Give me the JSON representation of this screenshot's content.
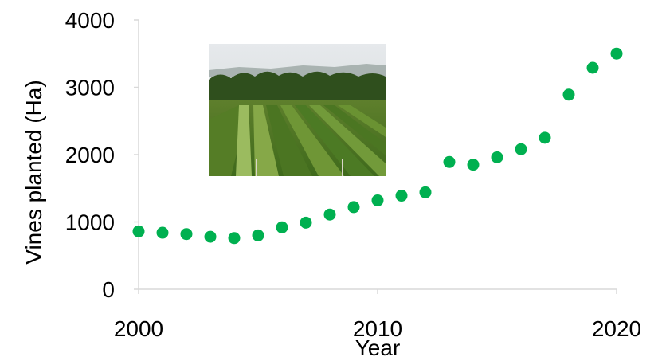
{
  "chart_data": {
    "type": "scatter",
    "title": "",
    "xlabel": "Year",
    "ylabel": "Vines planted (Ha)",
    "xlim": [
      2000,
      2020
    ],
    "ylim": [
      0,
      4000
    ],
    "x_ticks": [
      2000,
      2010,
      2020
    ],
    "y_ticks": [
      0,
      1000,
      2000,
      3000,
      4000
    ],
    "grid": false,
    "marker_color": "#00b050",
    "axis_color": "#d9d9d9",
    "inset_image": "vineyard-photo",
    "series": [
      {
        "x": [
          2000,
          2001,
          2002,
          2003,
          2004,
          2005,
          2006,
          2007,
          2008,
          2009,
          2010,
          2011,
          2012,
          2013,
          2014,
          2015,
          2016,
          2017,
          2018,
          2019,
          2020
        ],
        "y": [
          860,
          840,
          820,
          780,
          760,
          800,
          920,
          990,
          1110,
          1220,
          1320,
          1390,
          1440,
          1890,
          1850,
          1960,
          2080,
          2250,
          2890,
          3290,
          3500
        ]
      }
    ]
  }
}
